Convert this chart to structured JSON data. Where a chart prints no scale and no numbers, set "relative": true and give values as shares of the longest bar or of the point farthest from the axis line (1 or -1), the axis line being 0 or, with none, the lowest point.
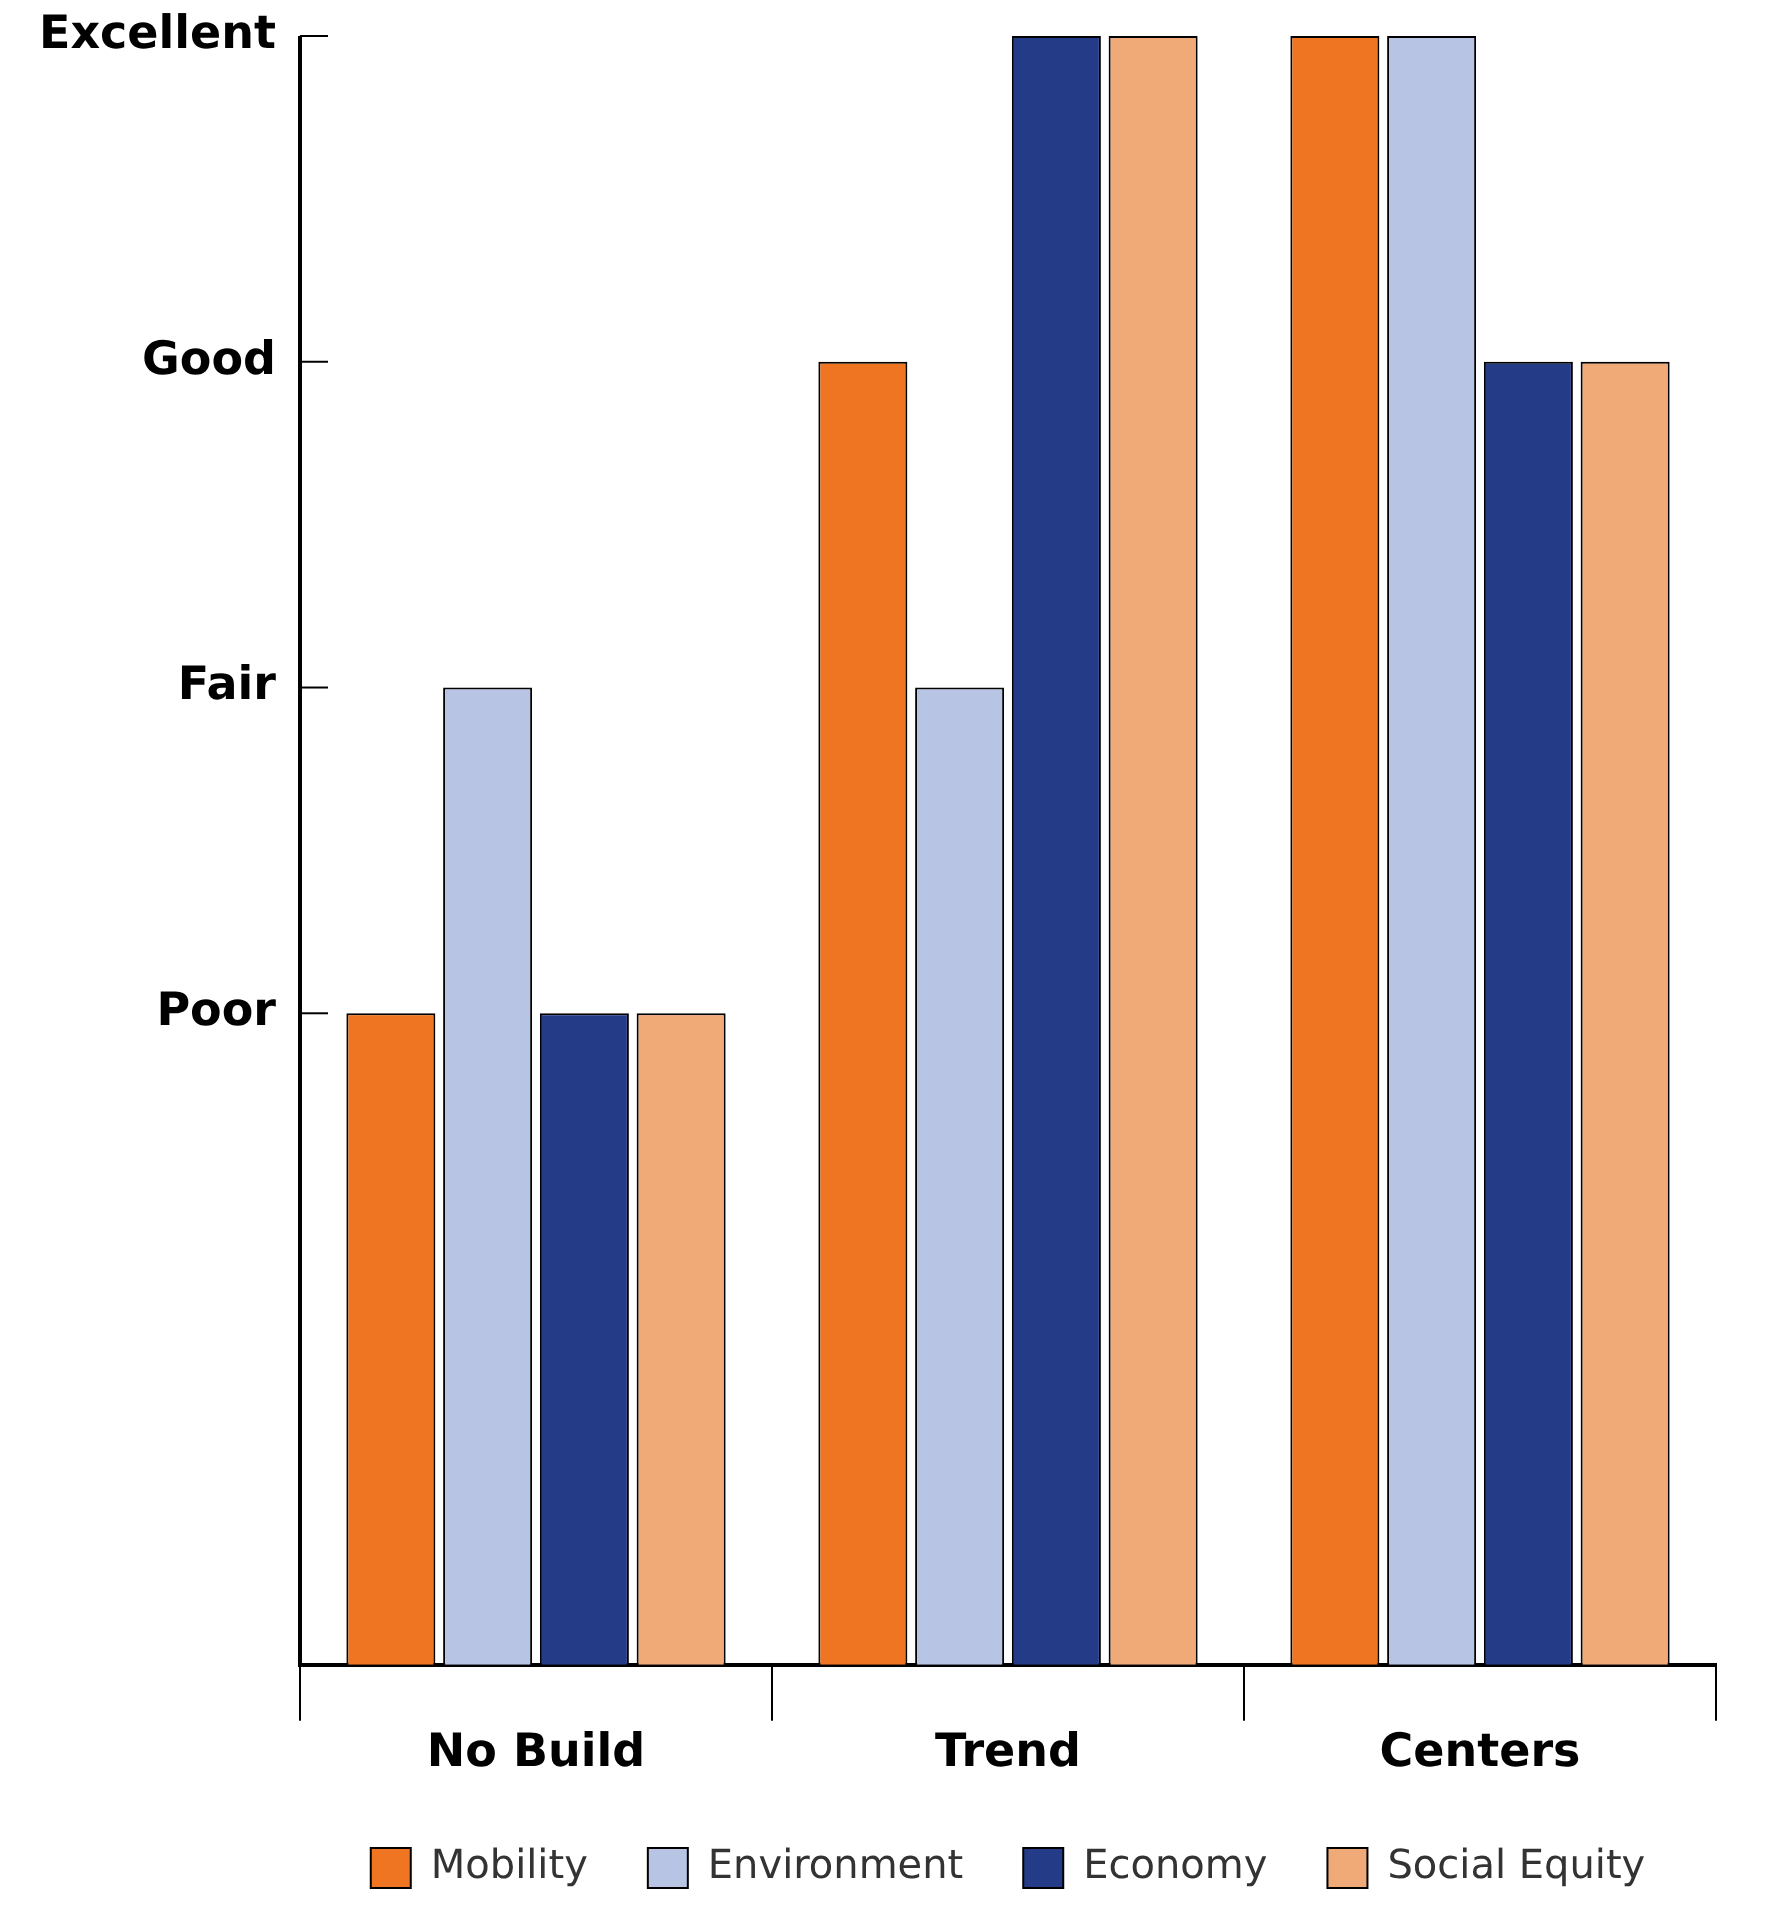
{
  "chart_data": {
    "type": "bar",
    "categories": [
      "No Build",
      "Trend",
      "Centers"
    ],
    "series": [
      {
        "name": "Mobility",
        "color": "#f07522",
        "values": [
          0.4,
          0.8,
          1
        ]
      },
      {
        "name": "Environment",
        "color": "#b7c4e4",
        "values": [
          0.6,
          0.6,
          1
        ]
      },
      {
        "name": "Economy",
        "color": "#243c87",
        "values": [
          0.4,
          1,
          0.8
        ]
      },
      {
        "name": "Social Equity",
        "color": "#f0aa78",
        "values": [
          0.4,
          1,
          0.8
        ]
      }
    ],
    "relative": true,
    "ref_lines": [
      {
        "axis": "y",
        "value": 0.4,
        "label": "Poor"
      },
      {
        "axis": "y",
        "value": 0.6,
        "label": "Fair"
      },
      {
        "axis": "y",
        "value": 0.8,
        "label": "Good"
      },
      {
        "axis": "y",
        "value": 1,
        "label": "Excellent"
      }
    ],
    "grid": false,
    "legend": "bottom"
  }
}
